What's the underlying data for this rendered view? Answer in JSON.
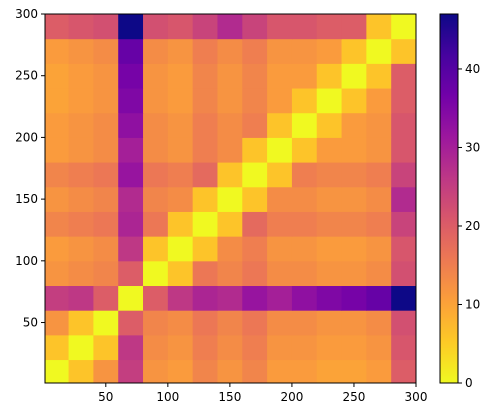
{
  "chart_data": {
    "type": "heatmap",
    "colormap": "plasma_r",
    "x": [
      10,
      30,
      50,
      70,
      90,
      110,
      130,
      150,
      170,
      190,
      210,
      230,
      250,
      270,
      290
    ],
    "y": [
      10,
      30,
      50,
      70,
      90,
      110,
      130,
      150,
      170,
      190,
      210,
      230,
      250,
      270,
      290
    ],
    "values": [
      [
        0,
        6,
        12,
        25,
        12,
        11,
        14,
        12,
        14,
        11,
        11,
        10,
        10,
        11,
        20
      ],
      [
        6,
        0,
        6,
        26,
        13,
        12,
        15,
        13,
        15,
        12,
        12,
        11,
        11,
        12,
        21
      ],
      [
        12,
        6,
        0,
        20,
        14,
        13,
        16,
        14,
        16,
        13,
        13,
        12,
        12,
        13,
        22
      ],
      [
        25,
        26,
        20,
        0,
        20,
        26,
        29,
        28,
        32,
        30,
        33,
        35,
        36,
        38,
        47
      ],
      [
        12,
        13,
        14,
        20,
        0,
        6,
        16,
        14,
        16,
        13,
        13,
        12,
        12,
        13,
        22
      ],
      [
        11,
        12,
        13,
        26,
        6,
        0,
        6,
        13,
        15,
        12,
        12,
        11,
        11,
        12,
        21
      ],
      [
        14,
        15,
        16,
        29,
        16,
        6,
        0,
        6,
        18,
        15,
        15,
        14,
        14,
        15,
        24
      ],
      [
        12,
        13,
        14,
        28,
        14,
        13,
        6,
        0,
        6,
        13,
        13,
        12,
        12,
        13,
        28
      ],
      [
        14,
        15,
        16,
        32,
        16,
        15,
        18,
        6,
        0,
        6,
        15,
        14,
        14,
        15,
        24
      ],
      [
        11,
        12,
        13,
        30,
        13,
        12,
        15,
        13,
        6,
        0,
        6,
        11,
        11,
        12,
        21
      ],
      [
        11,
        12,
        13,
        33,
        13,
        12,
        15,
        13,
        15,
        6,
        0,
        6,
        11,
        12,
        21
      ],
      [
        10,
        11,
        12,
        35,
        12,
        11,
        14,
        12,
        14,
        11,
        6,
        0,
        6,
        11,
        20
      ],
      [
        10,
        11,
        12,
        36,
        12,
        11,
        14,
        12,
        14,
        11,
        11,
        6,
        0,
        6,
        20
      ],
      [
        11,
        12,
        13,
        38,
        13,
        12,
        15,
        13,
        15,
        12,
        12,
        11,
        6,
        0,
        6
      ],
      [
        20,
        21,
        22,
        47,
        22,
        21,
        24,
        28,
        24,
        21,
        21,
        20,
        20,
        6,
        0
      ]
    ],
    "cell": 20,
    "xlim": [
      1,
      300
    ],
    "ylim": [
      1,
      300
    ],
    "xticks": [
      50,
      100,
      150,
      200,
      250,
      300
    ],
    "yticks": [
      50,
      100,
      150,
      200,
      250,
      300
    ],
    "zlim": [
      0,
      47
    ],
    "zticks": [
      0,
      10,
      20,
      30,
      40
    ]
  }
}
